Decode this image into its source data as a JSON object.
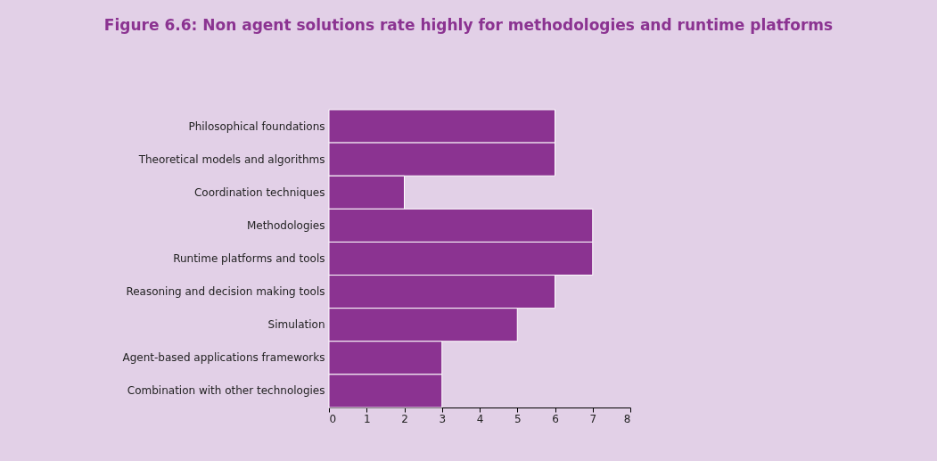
{
  "chart_data": {
    "type": "bar",
    "orientation": "horizontal",
    "title": "Figure 6.6: Non agent solutions rate highly for methodologies and runtime platforms",
    "categories": [
      "Philosophical foundations",
      "Theoretical models and algorithms",
      "Coordination techniques",
      "Methodologies",
      "Runtime platforms and  tools",
      "Reasoning and decision making tools",
      "Simulation",
      "Agent-based applications frameworks",
      "Combination  with other technologies"
    ],
    "values": [
      6,
      6,
      2,
      7,
      7,
      6,
      5,
      3,
      3
    ],
    "color": "#8b3391",
    "xlim": [
      0,
      8
    ],
    "xticks": [
      0,
      1,
      2,
      3,
      4,
      5,
      6,
      7,
      8
    ],
    "grid": false
  }
}
